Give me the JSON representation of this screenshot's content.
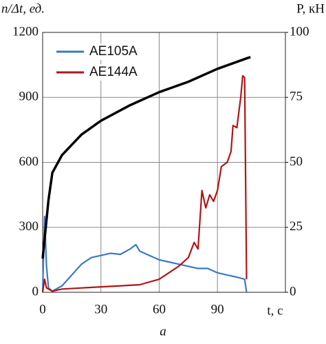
{
  "chart_data": {
    "type": "line",
    "y_label": "n/Δt, ед.",
    "y2_label": "P, кН",
    "x_label": "t, с",
    "caption": "а",
    "xlim": [
      0,
      125
    ],
    "xticks": [
      0,
      30,
      60,
      90
    ],
    "ylim": [
      0,
      1200
    ],
    "yticks": [
      0,
      300,
      600,
      900,
      1200
    ],
    "y2lim": [
      0,
      100
    ],
    "y2ticks": [
      0,
      25,
      50,
      75,
      100
    ],
    "grid": true,
    "legend": "upper-left",
    "series": [
      {
        "name": "AE105A",
        "color": "#3a78c9",
        "x": [
          0,
          1,
          2,
          3,
          5,
          10,
          15,
          20,
          25,
          30,
          35,
          40,
          45,
          48,
          50,
          55,
          60,
          65,
          70,
          75,
          80,
          85,
          90,
          95,
          100,
          104,
          105
        ],
        "values": [
          0,
          350,
          120,
          20,
          5,
          30,
          80,
          130,
          160,
          170,
          180,
          175,
          200,
          220,
          190,
          170,
          150,
          140,
          130,
          120,
          110,
          110,
          90,
          80,
          70,
          60,
          0
        ]
      },
      {
        "name": "AE144A",
        "color": "#b01515",
        "x": [
          0,
          1,
          2,
          5,
          10,
          20,
          30,
          40,
          50,
          60,
          65,
          70,
          75,
          78,
          80,
          82,
          84,
          86,
          88,
          90,
          92,
          95,
          97,
          98,
          100,
          102,
          103,
          104,
          105
        ],
        "values": [
          0,
          60,
          20,
          5,
          15,
          20,
          25,
          30,
          35,
          60,
          90,
          120,
          160,
          230,
          200,
          470,
          390,
          450,
          420,
          470,
          580,
          600,
          650,
          770,
          760,
          900,
          1000,
          990,
          60
        ]
      },
      {
        "color": "#000000",
        "axis": "y2",
        "x": [
          0,
          3,
          5,
          10,
          20,
          30,
          45,
          60,
          75,
          90,
          105,
          107
        ],
        "values": [
          13,
          35.5,
          46,
          52.8,
          60.7,
          66,
          72,
          77,
          81,
          86,
          90,
          90.5
        ]
      }
    ]
  }
}
